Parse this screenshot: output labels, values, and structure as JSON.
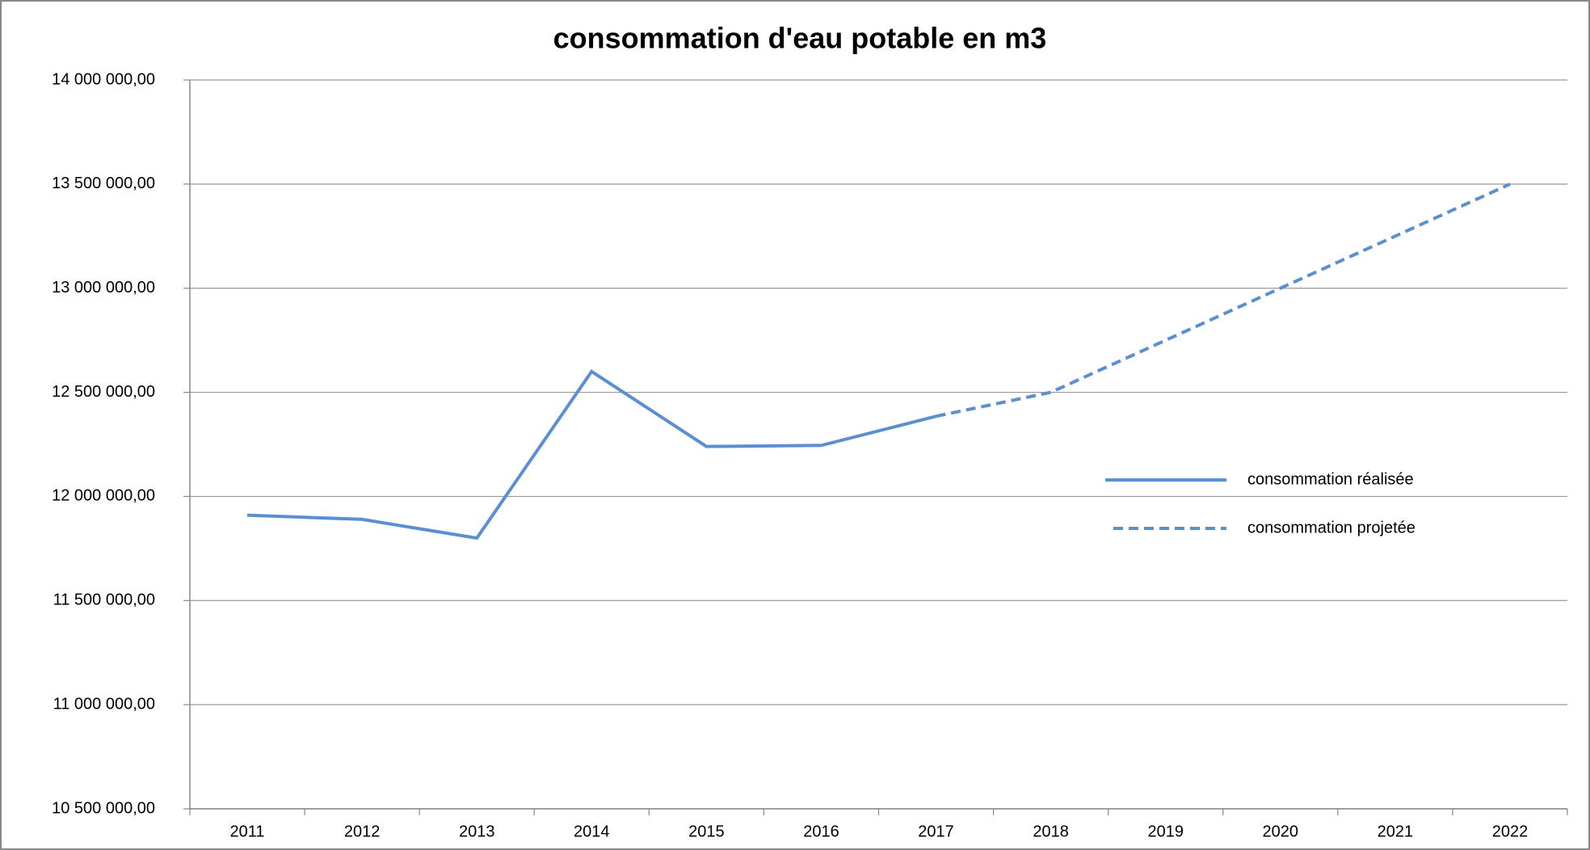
{
  "chart_data": {
    "type": "line",
    "title": "consommation d'eau potable en m3",
    "categories": [
      "2011",
      "2012",
      "2013",
      "2014",
      "2015",
      "2016",
      "2017",
      "2018",
      "2019",
      "2020",
      "2021",
      "2022"
    ],
    "series": [
      {
        "name": "consommation réalisée",
        "color": "#5a8fd0",
        "dash": false,
        "values": [
          11910000,
          11890000,
          11800000,
          12600000,
          12240000,
          12245000,
          12385000,
          null,
          null,
          null,
          null,
          null
        ]
      },
      {
        "name": "consommation projetée",
        "color": "#5a8fd0",
        "dash": true,
        "values": [
          null,
          null,
          null,
          null,
          null,
          null,
          12385000,
          12500000,
          12750000,
          13000000,
          13250000,
          13500000
        ]
      }
    ],
    "ylim": [
      10500000,
      14000000
    ],
    "yticks": [
      {
        "value": 10500000,
        "label": "10 500 000,00"
      },
      {
        "value": 11000000,
        "label": "11 000 000,00"
      },
      {
        "value": 11500000,
        "label": "11 500 000,00"
      },
      {
        "value": 12000000,
        "label": "12 000 000,00"
      },
      {
        "value": 12500000,
        "label": "12 500 000,00"
      },
      {
        "value": 13000000,
        "label": "13 000 000,00"
      },
      {
        "value": 13500000,
        "label": "13 500 000,00"
      },
      {
        "value": 14000000,
        "label": "14 000 000,00"
      }
    ],
    "grid": true,
    "legend": "right"
  }
}
